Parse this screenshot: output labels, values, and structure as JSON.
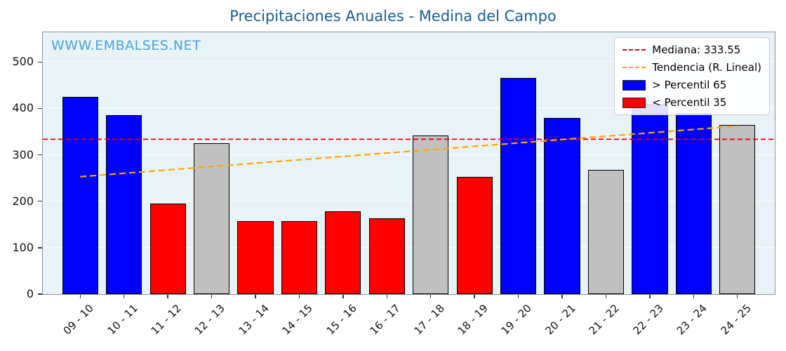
{
  "chart_data": {
    "type": "bar",
    "title": "Precipitaciones Anuales - Medina del Campo",
    "watermark": "WWW.EMBALSES.NET",
    "xlabel": "",
    "ylabel": "",
    "ylim": [
      0,
      564
    ],
    "yticks": [
      0,
      100,
      200,
      300,
      400,
      500
    ],
    "grid": "horizontal",
    "legend_position": "upper-right",
    "categories": [
      "09 - 10",
      "10 - 11",
      "11 - 12",
      "12 - 13",
      "13 - 14",
      "14 - 15",
      "15 - 16",
      "16 - 17",
      "17 - 18",
      "18 - 19",
      "19 - 20",
      "20 - 21",
      "21 - 22",
      "22 - 23",
      "23 - 24",
      "24 - 25"
    ],
    "values": [
      425,
      385,
      195,
      325,
      157,
      157,
      178,
      163,
      342,
      253,
      465,
      380,
      267,
      410,
      390,
      365
    ],
    "bar_colors": [
      "#0000ff",
      "#0000ff",
      "#ff0000",
      "#c0c0c0",
      "#ff0000",
      "#ff0000",
      "#ff0000",
      "#ff0000",
      "#c0c0c0",
      "#ff0000",
      "#0000ff",
      "#0000ff",
      "#c0c0c0",
      "#0000ff",
      "#0000ff",
      "#c0c0c0"
    ],
    "median": {
      "value": 333.55,
      "color": "#e60000",
      "label": "Mediana: 333.55"
    },
    "trend": {
      "start_value": 253,
      "end_value": 362,
      "color": "#ffa500",
      "label": "Tendencia (R. Lineal)"
    },
    "legend": [
      {
        "kind": "dashed-line",
        "color": "#e60000",
        "label": "Mediana: 333.55"
      },
      {
        "kind": "dashed-line",
        "color": "#ffa500",
        "label": "Tendencia (R. Lineal)"
      },
      {
        "kind": "patch",
        "color": "#0000ff",
        "label": " > Percentil 65"
      },
      {
        "kind": "patch",
        "color": "#ff0000",
        "label": " < Percentil 35"
      }
    ],
    "colors": {
      "title": "#15608d",
      "watermark": "#4ea2cc",
      "plot_background": "#e8f3f8",
      "gridline": "#ffffff",
      "bar_edge": "#000000",
      "axis_border": "#8a949c",
      "tick_label": "#111111"
    }
  }
}
